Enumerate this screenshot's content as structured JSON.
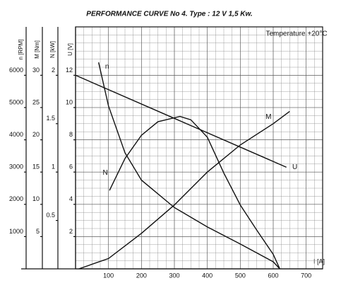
{
  "chart_data": {
    "type": "line",
    "title": "PERFORMANCE CURVE No 4.  Type : 12 V  1,5 Kw.",
    "annotation": "Temperature +20°C",
    "xlabel": "I [A]",
    "xlim": [
      0,
      750
    ],
    "xticks": [
      100,
      200,
      300,
      400,
      500,
      600,
      700
    ],
    "grid": true,
    "y_axes": [
      {
        "name": "n",
        "label": "n [RPM]",
        "ylim": [
          0,
          7500
        ],
        "yticks": [
          1000,
          2000,
          3000,
          4000,
          5000,
          6000
        ]
      },
      {
        "name": "M",
        "label": "M [Nm]",
        "ylim": [
          0,
          37.5
        ],
        "yticks": [
          5,
          10,
          15,
          20,
          25,
          30
        ]
      },
      {
        "name": "N",
        "label": "N [kW]",
        "ylim": [
          0,
          2.5
        ],
        "yticks": [
          0.5,
          1,
          1.5,
          2
        ]
      },
      {
        "name": "U",
        "label": "U [V]",
        "ylim": [
          0,
          15
        ],
        "yticks": [
          2,
          4,
          6,
          8,
          10,
          12
        ]
      }
    ],
    "series": [
      {
        "name": "n",
        "axis": "n",
        "color": "#111111",
        "x": [
          70,
          100,
          150,
          200,
          300,
          400,
          500,
          600,
          620
        ],
        "values": [
          6400,
          5050,
          3600,
          2750,
          1900,
          1300,
          770,
          220,
          0
        ]
      },
      {
        "name": "N",
        "axis": "N",
        "color": "#111111",
        "x": [
          103,
          150,
          200,
          250,
          317,
          350,
          400,
          450,
          500,
          550,
          600,
          620
        ],
        "values": [
          0.81,
          1.14,
          1.38,
          1.52,
          1.575,
          1.54,
          1.36,
          0.99,
          0.66,
          0.4,
          0.15,
          0
        ]
      },
      {
        "name": "M",
        "axis": "M",
        "color": "#111111",
        "x": [
          10,
          100,
          200,
          300,
          400,
          500,
          600,
          650
        ],
        "values": [
          0,
          1.6,
          5.5,
          9.9,
          15,
          19.2,
          22.5,
          24.4
        ]
      },
      {
        "name": "U",
        "axis": "U",
        "color": "#111111",
        "x": [
          0,
          640
        ],
        "values": [
          12,
          6.3
        ]
      }
    ]
  }
}
